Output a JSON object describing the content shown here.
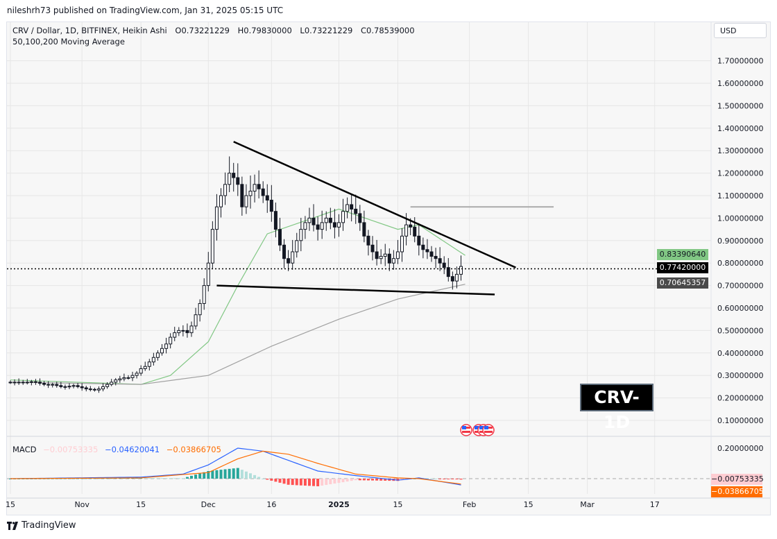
{
  "publish_line": "nileshrh73 published on TradingView.com, Jan 31, 2025 05:15 UTC",
  "legend": {
    "symbol": "CRV / Dollar, 1D, BITFINEX, Heikin Ashi",
    "open": "O0.73221229",
    "high": "H0.79830000",
    "low": "L0.73221229",
    "close": "C0.78539000",
    "indicator": "50,100,200 Moving Average"
  },
  "currency_button": "USD",
  "watermark_label": "CRV-1D",
  "footer_brand": "TradingView",
  "price_tags": {
    "ma_green": "0.83390640",
    "last_price": "0.77420000",
    "ma_gray": "0.70645357",
    "macd_hist": "−0.00753335",
    "macd_signal": "−0.03866705"
  },
  "macd_legend": {
    "label": "MACD",
    "histogram": "−0.00753335",
    "macd": "−0.04620041",
    "signal": "−0.03866705"
  },
  "colors": {
    "up": "#131722",
    "down": "#131722",
    "ma50": "#81c784",
    "ma100": "#a0a0a0",
    "macd": "#2962ff",
    "signal": "#ff6d00",
    "hist_up": "#26a69a",
    "hist_down": "#ff5252",
    "last_price": "#000000"
  },
  "chart_data": [
    {
      "type": "candlestick",
      "title": "CRV / Dollar, 1D, BITFINEX, Heikin Ashi",
      "y_ticks": [
        "1.70000000",
        "1.60000000",
        "1.50000000",
        "1.40000000",
        "1.30000000",
        "1.20000000",
        "1.10000000",
        "1.00000000",
        "0.90000000",
        "0.80000000",
        "0.70000000",
        "0.60000000",
        "0.50000000",
        "0.40000000",
        "0.30000000",
        "0.20000000",
        "0.10000000"
      ],
      "x_ticks": [
        {
          "label": "15",
          "date": "2024-10-15"
        },
        {
          "label": "Nov",
          "date": "2024-11-01"
        },
        {
          "label": "15",
          "date": "2024-11-15"
        },
        {
          "label": "Dec",
          "date": "2024-12-01"
        },
        {
          "label": "16",
          "date": "2024-12-16"
        },
        {
          "label": "2025",
          "date": "2025-01-01"
        },
        {
          "label": "15",
          "date": "2025-01-15"
        },
        {
          "label": "Feb",
          "date": "2025-02-01"
        },
        {
          "label": "15",
          "date": "2025-02-15"
        },
        {
          "label": "Mar",
          "date": "2025-03-01"
        },
        {
          "label": "17",
          "date": "2025-03-17"
        }
      ],
      "ylim": [
        0.1,
        1.7
      ],
      "start_date": "2024-10-15",
      "closes": [
        0.27,
        0.27,
        0.27,
        0.268,
        0.27,
        0.272,
        0.27,
        0.265,
        0.26,
        0.258,
        0.26,
        0.255,
        0.25,
        0.25,
        0.252,
        0.255,
        0.25,
        0.245,
        0.24,
        0.238,
        0.235,
        0.24,
        0.25,
        0.26,
        0.27,
        0.28,
        0.285,
        0.29,
        0.29,
        0.3,
        0.31,
        0.33,
        0.34,
        0.36,
        0.38,
        0.4,
        0.42,
        0.44,
        0.47,
        0.49,
        0.5,
        0.5,
        0.49,
        0.52,
        0.57,
        0.62,
        0.7,
        0.8,
        0.95,
        1.05,
        1.1,
        1.15,
        1.2,
        1.18,
        1.15,
        1.05,
        1.1,
        1.12,
        1.15,
        1.13,
        1.1,
        1.08,
        1.03,
        0.95,
        0.88,
        0.82,
        0.8,
        0.85,
        0.9,
        0.95,
        0.98,
        1.0,
        0.97,
        0.95,
        0.98,
        1.0,
        0.98,
        0.96,
        0.98,
        1.03,
        1.06,
        1.04,
        1.02,
        0.98,
        0.92,
        0.88,
        0.85,
        0.82,
        0.83,
        0.84,
        0.8,
        0.82,
        0.85,
        0.92,
        0.97,
        0.96,
        0.92,
        0.88,
        0.86,
        0.85,
        0.83,
        0.82,
        0.8,
        0.78,
        0.74,
        0.72,
        0.75,
        0.785
      ],
      "moving_averages": [
        {
          "name": "MA50",
          "points": [
            [
              "2024-10-15",
              0.28
            ],
            [
              "2024-11-15",
              0.26
            ],
            [
              "2024-11-22",
              0.3
            ],
            [
              "2024-12-01",
              0.45
            ],
            [
              "2024-12-08",
              0.7
            ],
            [
              "2024-12-15",
              0.93
            ],
            [
              "2025-01-01",
              1.04
            ],
            [
              "2025-01-15",
              0.95
            ],
            [
              "2025-01-20",
              0.97
            ],
            [
              "2025-01-31",
              0.834
            ]
          ]
        },
        {
          "name": "MA100",
          "points": [
            [
              "2024-10-15",
              0.27
            ],
            [
              "2024-11-15",
              0.26
            ],
            [
              "2024-12-01",
              0.3
            ],
            [
              "2024-12-16",
              0.43
            ],
            [
              "2025-01-01",
              0.55
            ],
            [
              "2025-01-15",
              0.64
            ],
            [
              "2025-01-31",
              0.706
            ]
          ]
        }
      ],
      "last_price": 0.7742,
      "trendlines": [
        {
          "from": [
            "2024-12-07",
            1.34
          ],
          "to": [
            "2025-02-12",
            0.78
          ]
        },
        {
          "from": [
            "2024-12-03",
            0.7
          ],
          "to": [
            "2025-02-07",
            0.66
          ]
        }
      ],
      "horizontal_line": {
        "from": "2025-01-18",
        "to": "2025-02-21",
        "price": 1.05
      }
    },
    {
      "type": "line",
      "title": "MACD",
      "y_ticks": [
        "0.20000000"
      ],
      "series": [
        {
          "name": "MACD",
          "points": [
            [
              "2024-10-15",
              0.0
            ],
            [
              "2024-11-15",
              0.01
            ],
            [
              "2024-11-25",
              0.03
            ],
            [
              "2024-12-01",
              0.09
            ],
            [
              "2024-12-08",
              0.2
            ],
            [
              "2024-12-14",
              0.18
            ],
            [
              "2024-12-20",
              0.12
            ],
            [
              "2024-12-27",
              0.05
            ],
            [
              "2025-01-05",
              0.02
            ],
            [
              "2025-01-15",
              -0.01
            ],
            [
              "2025-01-20",
              0.005
            ],
            [
              "2025-01-31",
              -0.046
            ]
          ]
        },
        {
          "name": "Signal",
          "points": [
            [
              "2024-10-15",
              0.0
            ],
            [
              "2024-11-15",
              0.005
            ],
            [
              "2024-12-01",
              0.04
            ],
            [
              "2024-12-08",
              0.13
            ],
            [
              "2024-12-14",
              0.18
            ],
            [
              "2024-12-20",
              0.16
            ],
            [
              "2024-12-27",
              0.1
            ],
            [
              "2025-01-05",
              0.03
            ],
            [
              "2025-01-15",
              0.005
            ],
            [
              "2025-01-20",
              0.0
            ],
            [
              "2025-01-31",
              -0.039
            ]
          ]
        }
      ]
    }
  ]
}
